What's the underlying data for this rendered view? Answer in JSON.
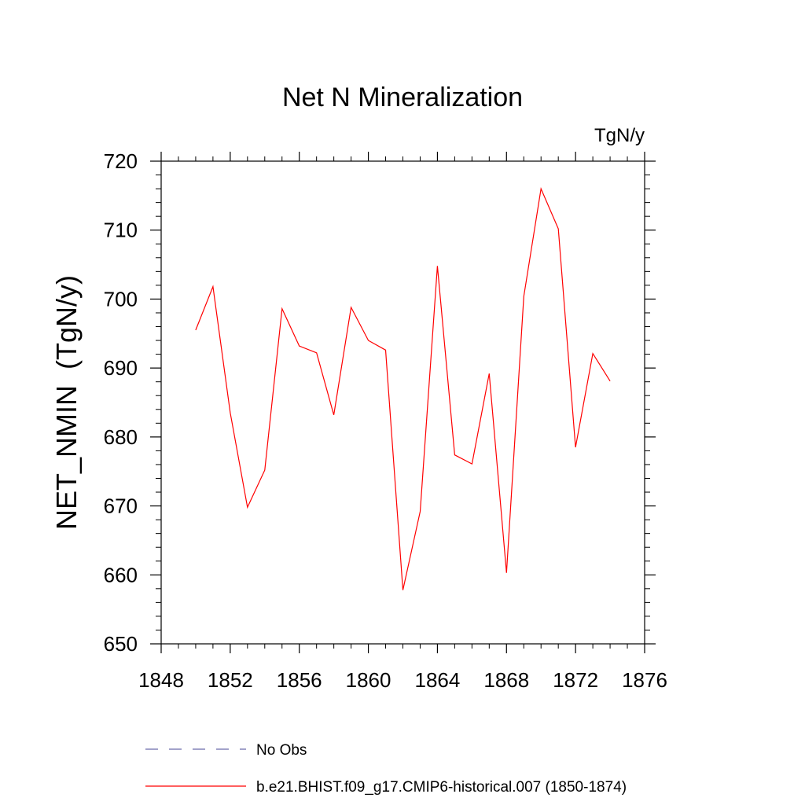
{
  "chart_data": {
    "type": "line",
    "title": "Net N Mineralization",
    "units": "TgN/y",
    "ylabel": "NET_NMIN  (TgN/y)",
    "xlabel": "",
    "xlim": [
      1848,
      1876
    ],
    "ylim": [
      650,
      720
    ],
    "x_ticks": [
      1848,
      1852,
      1856,
      1860,
      1864,
      1868,
      1872,
      1876
    ],
    "y_ticks": [
      650,
      660,
      670,
      680,
      690,
      700,
      710,
      720
    ],
    "grid": false,
    "legend_position": "bottom",
    "series": [
      {
        "name": "b.e21.BHIST.f09_g17.CMIP6-historical.007 (1850-1874)",
        "color": "#ff0000",
        "style": "solid",
        "x": [
          1850,
          1851,
          1852,
          1853,
          1854,
          1855,
          1856,
          1857,
          1858,
          1859,
          1860,
          1861,
          1862,
          1863,
          1864,
          1865,
          1866,
          1867,
          1868,
          1869,
          1870,
          1871,
          1872,
          1873,
          1874
        ],
        "y": [
          695.5,
          701.8,
          683.5,
          669.8,
          675.2,
          698.6,
          693.2,
          692.2,
          683.2,
          698.8,
          694.0,
          692.6,
          657.8,
          669.2,
          704.8,
          677.4,
          676.1,
          689.2,
          660.3,
          700.4,
          716.0,
          710.2,
          678.5,
          692.1,
          688.1
        ]
      }
    ],
    "legend": [
      {
        "label": "No Obs",
        "color": "#6a6aaa",
        "style": "dashed"
      },
      {
        "label": "b.e21.BHIST.f09_g17.CMIP6-historical.007 (1850-1874)",
        "color": "#ff0000",
        "style": "solid"
      }
    ]
  }
}
